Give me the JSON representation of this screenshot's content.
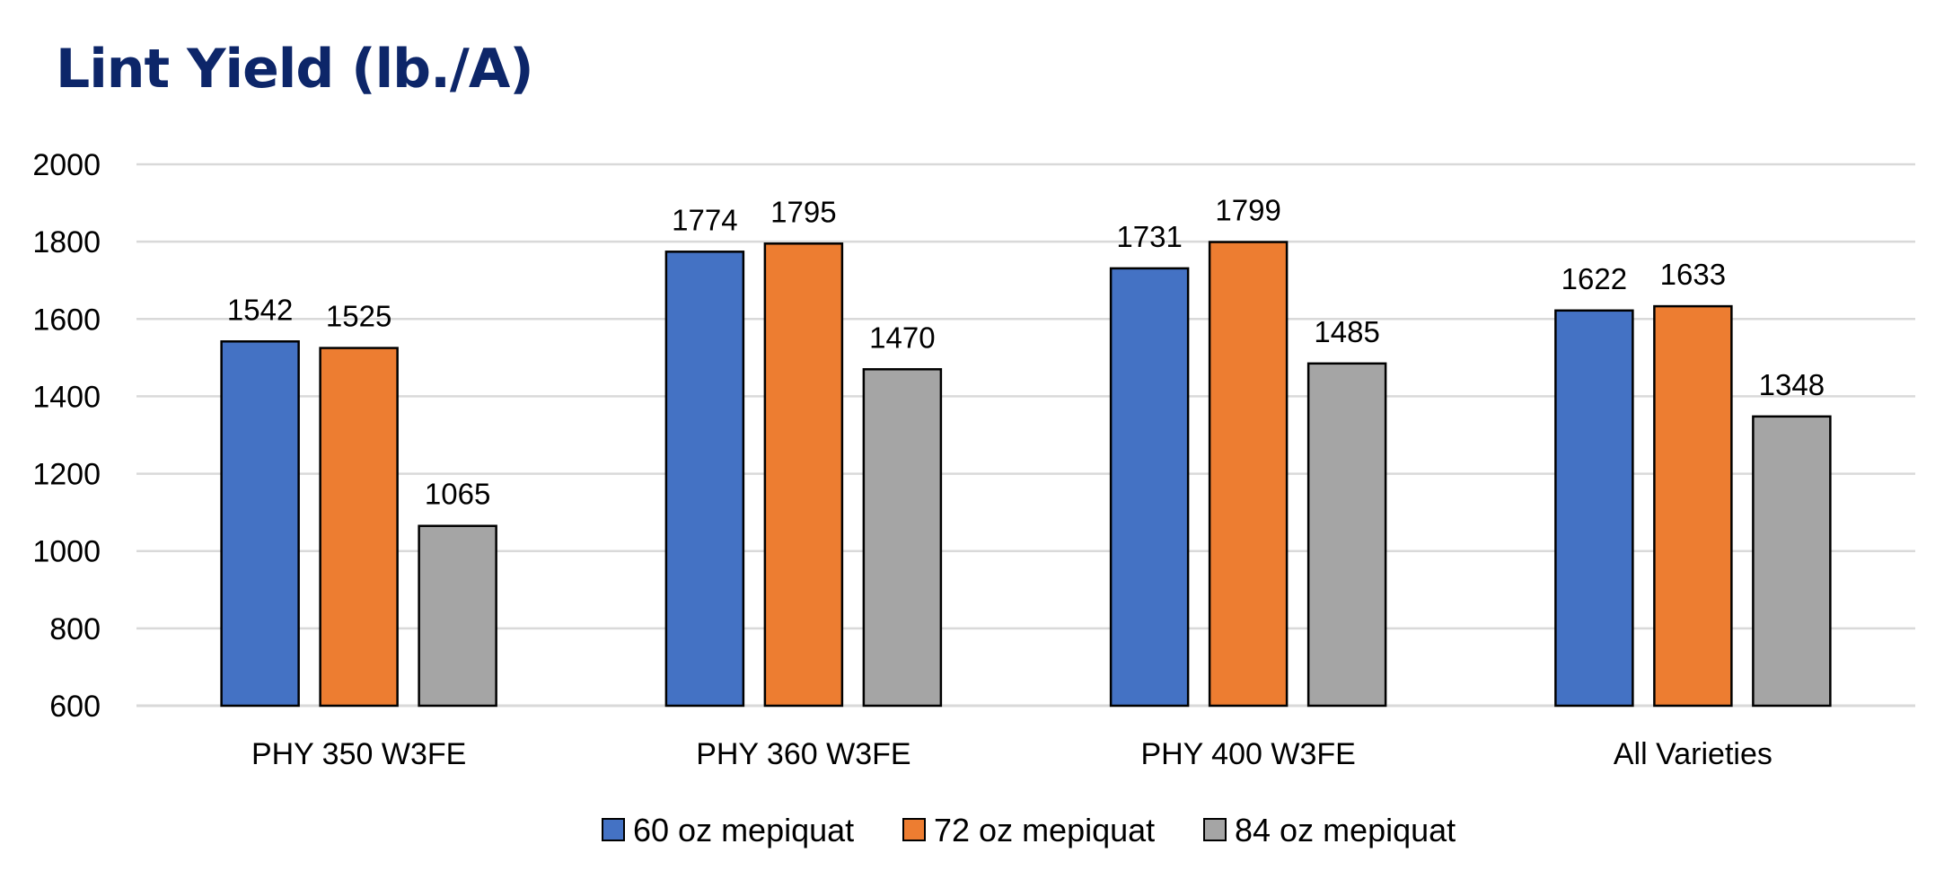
{
  "chart_data": {
    "type": "bar",
    "title": "Lint Yield (lb./A)",
    "xlabel": "",
    "ylabel": "",
    "categories": [
      "PHY 350 W3FE",
      "PHY 360 W3FE",
      "PHY 400 W3FE",
      "All Varieties"
    ],
    "series": [
      {
        "name": "60 oz mepiquat",
        "color": "#4472c4",
        "values": [
          1542,
          1774,
          1731,
          1622
        ]
      },
      {
        "name": "72 oz mepiquat",
        "color": "#ed7d31",
        "values": [
          1525,
          1795,
          1799,
          1633
        ]
      },
      {
        "name": "84 oz mepiquat",
        "color": "#a5a5a5",
        "values": [
          1065,
          1470,
          1485,
          1348
        ]
      }
    ],
    "ylim": [
      600,
      2000
    ],
    "yticks": [
      600,
      800,
      1000,
      1200,
      1400,
      1600,
      1800,
      2000
    ],
    "grid": true,
    "legend": "bottom-center",
    "data_labels": true
  }
}
